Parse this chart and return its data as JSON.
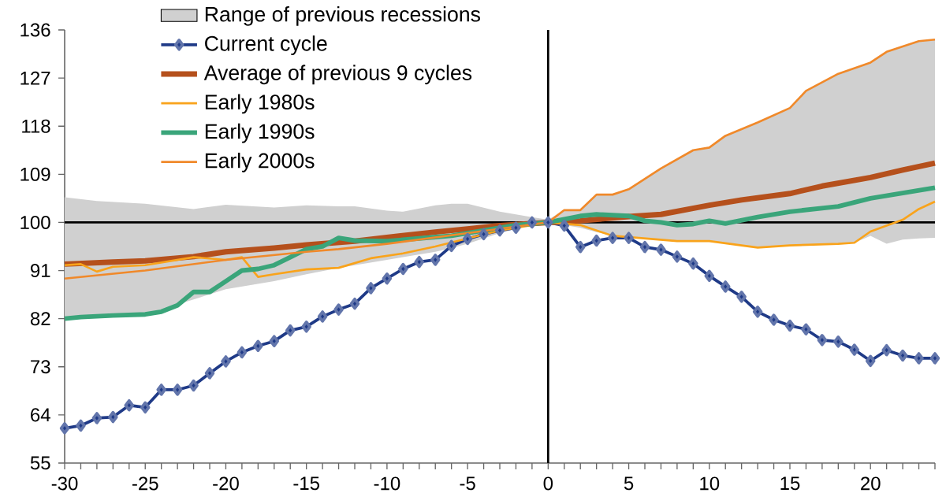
{
  "chart_data": {
    "type": "line",
    "xlim": [
      -30,
      24
    ],
    "ylim": [
      55,
      136
    ],
    "xticks": [
      -30,
      {
        "value": -29,
        "label": null
      },
      {
        "value": -28,
        "label": null
      },
      {
        "value": -27,
        "label": null
      },
      {
        "value": -26,
        "label": null
      },
      -25,
      {
        "value": -24,
        "label": null
      },
      {
        "value": -23,
        "label": null
      },
      {
        "value": -22,
        "label": null
      },
      {
        "value": -21,
        "label": null
      },
      -20,
      {
        "value": -19,
        "label": null
      },
      {
        "value": -18,
        "label": null
      },
      {
        "value": -17,
        "label": null
      },
      {
        "value": -16,
        "label": null
      },
      -15,
      {
        "value": -14,
        "label": null
      },
      {
        "value": -13,
        "label": null
      },
      {
        "value": -12,
        "label": null
      },
      {
        "value": -11,
        "label": null
      },
      -10,
      {
        "value": -9,
        "label": null
      },
      {
        "value": -8,
        "label": null
      },
      {
        "value": -7,
        "label": null
      },
      {
        "value": -6,
        "label": null
      },
      -5,
      {
        "value": -4,
        "label": null
      },
      {
        "value": -3,
        "label": null
      },
      {
        "value": -2,
        "label": null
      },
      {
        "value": -1,
        "label": null
      },
      0,
      {
        "value": 1,
        "label": null
      },
      {
        "value": 2,
        "label": null
      },
      {
        "value": 3,
        "label": null
      },
      {
        "value": 4,
        "label": null
      },
      5,
      {
        "value": 6,
        "label": null
      },
      {
        "value": 7,
        "label": null
      },
      {
        "value": 8,
        "label": null
      },
      {
        "value": 9,
        "label": null
      },
      10,
      {
        "value": 11,
        "label": null
      },
      {
        "value": 12,
        "label": null
      },
      {
        "value": 13,
        "label": null
      },
      {
        "value": 14,
        "label": null
      },
      15,
      {
        "value": 16,
        "label": null
      },
      {
        "value": 17,
        "label": null
      },
      {
        "value": 18,
        "label": null
      },
      {
        "value": 19,
        "label": null
      },
      20,
      {
        "value": 21,
        "label": null
      },
      {
        "value": 22,
        "label": null
      },
      {
        "value": 23,
        "label": null
      },
      {
        "value": 24,
        "label": null
      }
    ],
    "yticks": [
      55,
      64,
      73,
      82,
      91,
      100,
      109,
      118,
      127,
      136
    ],
    "grid": false,
    "legend": "top left",
    "ref_lines": [
      {
        "axis": "y",
        "value": 100,
        "color": "#000000"
      },
      {
        "axis": "x",
        "value": 0,
        "color": "#000000"
      }
    ],
    "series": [
      {
        "name": "Range of previous recessions",
        "type": "area",
        "color": "#d0d0d0",
        "x": [
          -30,
          -28,
          -25,
          -22,
          -20,
          -17,
          -15,
          -13,
          -12,
          -10,
          -9,
          -7,
          -6,
          -5,
          -3,
          -1,
          0,
          1,
          2,
          3,
          4,
          5,
          7,
          9,
          10,
          11,
          13,
          15,
          16,
          18,
          19,
          20,
          21,
          22,
          23,
          24
        ],
        "values": [
          null,
          null,
          null,
          null,
          null,
          null,
          null,
          null,
          null,
          null,
          null,
          null,
          null,
          null,
          null,
          null,
          null,
          null,
          null,
          null,
          null,
          null,
          null,
          null,
          null,
          null,
          null,
          null,
          null,
          null,
          null,
          null,
          null,
          null,
          null,
          null
        ],
        "upper": [
          104.7,
          104,
          103.5,
          102.5,
          103.3,
          102.8,
          103.2,
          103,
          103,
          102.2,
          102,
          103.2,
          103.5,
          103.5,
          102,
          101,
          100.5,
          102.3,
          102.3,
          105.2,
          105.2,
          106.2,
          110.1,
          113.5,
          114,
          116.2,
          118.7,
          121.4,
          124.6,
          127.8,
          128.8,
          129.9,
          131.9,
          133,
          133.9,
          134.2
        ],
        "lower": [
          82,
          82.4,
          82.8,
          85.6,
          87.5,
          89,
          90.3,
          91.5,
          92,
          93,
          93.5,
          94.5,
          95.2,
          96,
          98,
          99.5,
          100,
          99.5,
          99,
          98.2,
          97.5,
          97.2,
          96.8,
          96.5,
          96.5,
          96,
          95.3,
          95.7,
          95.8,
          96,
          96.2,
          97.5,
          96,
          96.8,
          97,
          97.1
        ]
      },
      {
        "name": "Current cycle",
        "type": "line",
        "color": "#1f3a87",
        "marker": "diamond",
        "x": [
          -30,
          -29,
          -28,
          -27,
          -26,
          -25,
          -24,
          -23,
          -22,
          -21,
          -20,
          -19,
          -18,
          -17,
          -16,
          -15,
          -14,
          -13,
          -12,
          -11,
          -10,
          -9,
          -8,
          -7,
          -6,
          -5,
          -4,
          -3,
          -2,
          -1,
          0,
          1,
          2,
          3,
          4,
          5,
          6,
          7,
          8,
          9,
          10,
          11,
          12,
          13,
          14,
          15,
          16,
          17,
          18,
          19,
          20,
          21,
          22,
          23,
          24
        ],
        "values": [
          61.5,
          62,
          63.4,
          63.6,
          65.8,
          65.4,
          68.7,
          68.7,
          69.5,
          71.8,
          74,
          75.7,
          76.9,
          77.8,
          79.8,
          80.5,
          82.4,
          83.7,
          84.8,
          87.7,
          89.5,
          91.3,
          92.6,
          93,
          95.6,
          96.9,
          97.8,
          98.5,
          99,
          100,
          100,
          99.4,
          95.4,
          96.6,
          97.1,
          97.1,
          95.4,
          94.9,
          93.6,
          92.3,
          90,
          88,
          86.1,
          83.3,
          81.8,
          80.7,
          80,
          78,
          77.7,
          76.2,
          74.1,
          76.1,
          75.1,
          74.6,
          74.6
        ]
      },
      {
        "name": "Average of previous 9 cycles",
        "type": "line",
        "color": "#b5501c",
        "x": [
          -30,
          -27,
          -25,
          -22,
          -20,
          -17,
          -15,
          -12,
          -10,
          -7,
          -5,
          -3,
          0,
          2,
          5,
          7,
          10,
          12,
          15,
          17,
          20,
          22,
          24
        ],
        "values": [
          92.2,
          92.6,
          92.8,
          93.6,
          94.5,
          95.2,
          95.8,
          96.5,
          97.2,
          98.2,
          98.8,
          99.4,
          100,
          100.3,
          101.1,
          101.5,
          103.2,
          104.2,
          105.4,
          106.8,
          108.4,
          109.8,
          111.1
        ]
      },
      {
        "name": "Early 1980s",
        "type": "line",
        "color": "#f9a31b",
        "x": [
          -30,
          -29,
          -28,
          -27,
          -25,
          -22,
          -20,
          -19,
          -18,
          -17,
          -15,
          -13,
          -11,
          -9,
          -7,
          -5,
          -3,
          0,
          2,
          4,
          6,
          8,
          10,
          13,
          15,
          18,
          19,
          20,
          22,
          23,
          24
        ],
        "values": [
          92,
          92.2,
          90.8,
          91.7,
          92,
          93.5,
          93,
          93.5,
          89.8,
          90.3,
          91.2,
          91.5,
          93.3,
          94.2,
          95.5,
          97,
          98.5,
          100,
          99.5,
          97.5,
          97,
          96.5,
          96.5,
          95.3,
          95.7,
          96,
          96.2,
          98.3,
          100.5,
          102.5,
          103.9
        ]
      },
      {
        "name": "Early 1990s",
        "type": "line",
        "color": "#3aa57a",
        "x": [
          -30,
          -29,
          -27,
          -25,
          -24,
          -23,
          -22,
          -21,
          -20,
          -19,
          -18,
          -17,
          -16,
          -15,
          -14,
          -13,
          -12,
          -10,
          -8,
          -6,
          -4,
          -2,
          0,
          2,
          3,
          5,
          6,
          7,
          8,
          9,
          10,
          11,
          13,
          15,
          18,
          20,
          22,
          24
        ],
        "values": [
          82,
          82.3,
          82.6,
          82.8,
          83.3,
          84.5,
          87,
          87,
          89,
          91,
          91.3,
          92,
          93.5,
          95,
          95.5,
          97.1,
          96.6,
          96.5,
          97,
          97.5,
          98.5,
          99.5,
          100,
          101.2,
          101.5,
          101.2,
          100.3,
          100,
          99.5,
          99.7,
          100.3,
          99.8,
          101,
          102,
          103,
          104.5,
          105.5,
          106.5
        ]
      },
      {
        "name": "Early 2000s",
        "type": "line",
        "color": "#f0892a",
        "x": [
          -30,
          -25,
          -20,
          -15,
          -13,
          -10,
          -5,
          0,
          1,
          2,
          3,
          4,
          5,
          7,
          9,
          10,
          11,
          13,
          15,
          16,
          18,
          20,
          21,
          23,
          24
        ],
        "values": [
          89.5,
          91,
          93,
          94.5,
          95,
          96,
          98,
          100,
          102.3,
          102.3,
          105.2,
          105.2,
          106.2,
          110.1,
          113.5,
          114,
          116.2,
          118.7,
          121.4,
          124.6,
          127.8,
          129.9,
          131.9,
          133.9,
          134.2
        ]
      }
    ]
  }
}
